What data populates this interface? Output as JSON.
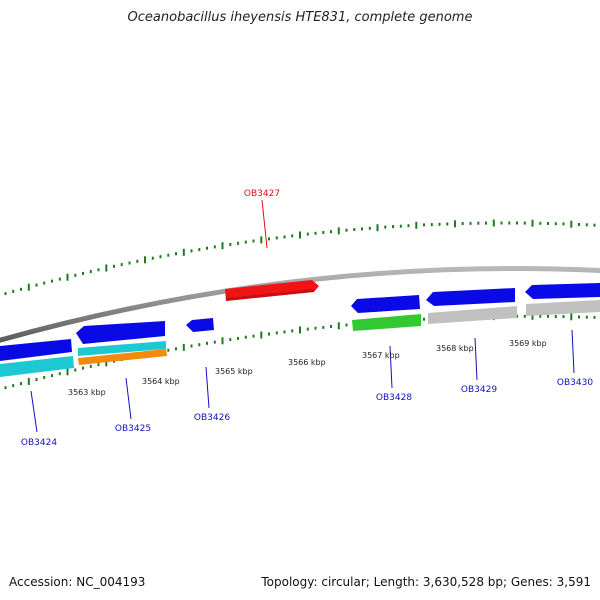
{
  "title": "Oceanobacillus iheyensis HTE831, complete genome",
  "footer": {
    "accession": "Accession: NC_004193",
    "summary": "Topology: circular; Length: 3,630,528 bp; Genes: 3,591"
  },
  "colors": {
    "blue": "#0a0ae6",
    "cyan": "#1ec8d2",
    "orange": "#f08c0a",
    "red": "#f01414",
    "green": "#32c832",
    "gray": "#c0c0c0",
    "backbone": "#909090",
    "tick": "#1f7a1f",
    "label_blue": "#1010c0",
    "label_red": "#e01010"
  },
  "scale_labels": [
    "3563 kbp",
    "3564 kbp",
    "3565 kbp",
    "3566 kbp",
    "3567 kbp",
    "3568 kbp",
    "3569 kbp"
  ],
  "gene_labels": [
    {
      "id": "OB3424",
      "color": "blue"
    },
    {
      "id": "OB3425",
      "color": "blue"
    },
    {
      "id": "OB3426",
      "color": "blue"
    },
    {
      "id": "OB3427",
      "color": "red"
    },
    {
      "id": "OB3428",
      "color": "blue"
    },
    {
      "id": "OB3429",
      "color": "blue"
    },
    {
      "id": "OB3430",
      "color": "blue"
    }
  ]
}
